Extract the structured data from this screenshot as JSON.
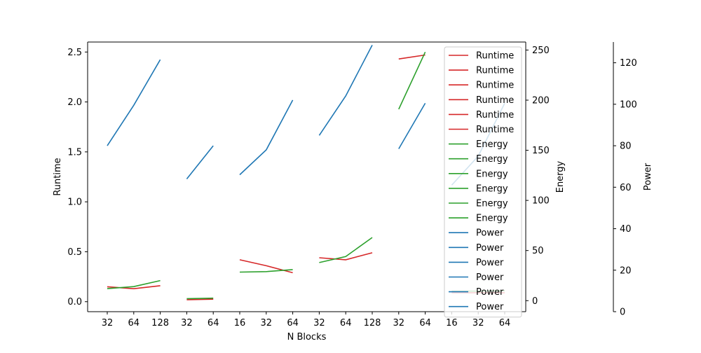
{
  "chart_data": {
    "type": "line",
    "xlabel": "N Blocks",
    "x_tick_labels": [
      "32",
      "64",
      "128",
      "32",
      "64",
      "16",
      "32",
      "64",
      "32",
      "64",
      "128",
      "32",
      "64",
      "16",
      "32",
      "64"
    ],
    "axes": {
      "runtime": {
        "label": "Runtime",
        "ylim": [
          -0.1,
          2.6
        ],
        "ticks": [
          0.0,
          0.5,
          1.0,
          1.5,
          2.0,
          2.5
        ],
        "tick_labels": [
          "0.0",
          "0.5",
          "1.0",
          "1.5",
          "2.0",
          "2.5"
        ]
      },
      "energy": {
        "label": "Energy",
        "ylim": [
          -11,
          258
        ],
        "ticks": [
          0,
          50,
          100,
          150,
          200,
          250
        ],
        "tick_labels": [
          "0",
          "50",
          "100",
          "150",
          "200",
          "250"
        ]
      },
      "power": {
        "label": "Power",
        "ylim": [
          0,
          130
        ],
        "ticks": [
          0,
          20,
          40,
          60,
          80,
          100,
          120
        ],
        "tick_labels": [
          "0",
          "20",
          "40",
          "60",
          "80",
          "100",
          "120"
        ]
      }
    },
    "colors": {
      "Runtime": "#d62728",
      "Energy": "#2ca02c",
      "Power": "#1f77b4"
    },
    "series": [
      {
        "name": "Runtime",
        "axis": "runtime",
        "x": [
          0,
          1,
          2
        ],
        "values": [
          0.15,
          0.13,
          0.16
        ]
      },
      {
        "name": "Runtime",
        "axis": "runtime",
        "x": [
          3,
          4
        ],
        "values": [
          0.02,
          0.025
        ]
      },
      {
        "name": "Runtime",
        "axis": "runtime",
        "x": [
          5,
          6,
          7
        ],
        "values": [
          0.42,
          0.36,
          0.29
        ]
      },
      {
        "name": "Runtime",
        "axis": "runtime",
        "x": [
          8,
          9,
          10
        ],
        "values": [
          0.44,
          0.42,
          0.49
        ]
      },
      {
        "name": "Runtime",
        "axis": "runtime",
        "x": [
          11,
          12
        ],
        "values": [
          2.43,
          2.47
        ]
      },
      {
        "name": "Runtime",
        "axis": "runtime",
        "x": [
          13,
          14,
          15
        ],
        "values": [
          0.09,
          0.09,
          0.09
        ]
      },
      {
        "name": "Energy",
        "axis": "energy",
        "x": [
          0,
          1,
          2
        ],
        "values": [
          12,
          14,
          20
        ]
      },
      {
        "name": "Energy",
        "axis": "energy",
        "x": [
          3,
          4
        ],
        "values": [
          2,
          2.5
        ]
      },
      {
        "name": "Energy",
        "axis": "energy",
        "x": [
          5,
          6,
          7
        ],
        "values": [
          28.5,
          29,
          31
        ]
      },
      {
        "name": "Energy",
        "axis": "energy",
        "x": [
          8,
          9,
          10
        ],
        "values": [
          38,
          44,
          63
        ]
      },
      {
        "name": "Energy",
        "axis": "energy",
        "x": [
          11,
          12
        ],
        "values": [
          191,
          248
        ]
      },
      {
        "name": "Energy",
        "axis": "energy",
        "x": [
          13,
          14,
          15
        ],
        "values": [
          9.5,
          9.5,
          10
        ]
      },
      {
        "name": "Power",
        "axis": "power",
        "x": [
          0,
          1,
          2
        ],
        "values": [
          80,
          99.5,
          121.5
        ]
      },
      {
        "name": "Power",
        "axis": "power",
        "x": [
          3,
          4
        ],
        "values": [
          64,
          80
        ]
      },
      {
        "name": "Power",
        "axis": "power",
        "x": [
          5,
          6,
          7
        ],
        "values": [
          66,
          78,
          102
        ]
      },
      {
        "name": "Power",
        "axis": "power",
        "x": [
          8,
          9,
          10
        ],
        "values": [
          85,
          104,
          128.5
        ]
      },
      {
        "name": "Power",
        "axis": "power",
        "x": [
          11,
          12
        ],
        "values": [
          78.5,
          100.5
        ]
      },
      {
        "name": "Power",
        "axis": "power",
        "x": [
          13,
          14,
          15
        ],
        "values": [
          61,
          75,
          100.5
        ]
      }
    ],
    "legend": {
      "placement": "right",
      "entries": [
        "Runtime",
        "Runtime",
        "Runtime",
        "Runtime",
        "Runtime",
        "Runtime",
        "Energy",
        "Energy",
        "Energy",
        "Energy",
        "Energy",
        "Energy",
        "Power",
        "Power",
        "Power",
        "Power",
        "Power",
        "Power"
      ]
    },
    "grid": false
  }
}
